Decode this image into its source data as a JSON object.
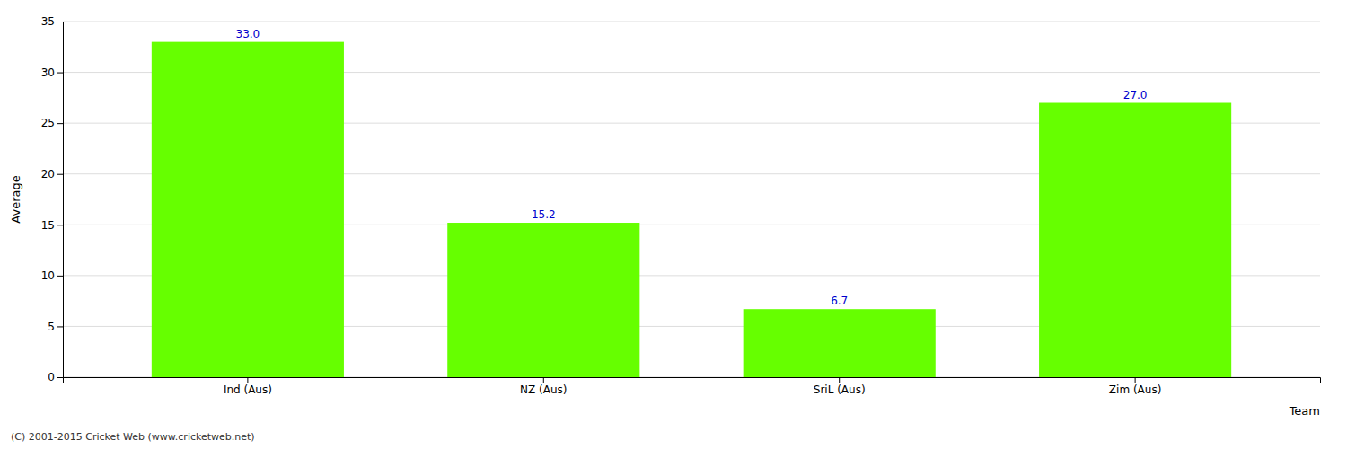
{
  "chart_data": {
    "type": "bar",
    "categories": [
      "Ind (Aus)",
      "NZ (Aus)",
      "SriL (Aus)",
      "Zim (Aus)"
    ],
    "values": [
      33.0,
      15.2,
      6.7,
      27.0
    ],
    "value_labels": [
      "33.0",
      "15.2",
      "6.7",
      "27.0"
    ],
    "color": "#66ff00",
    "xlabel": "Team",
    "ylabel": "Average",
    "ylim": [
      0,
      35
    ],
    "yticks": [
      0,
      5,
      10,
      15,
      20,
      25,
      30,
      35
    ],
    "grid": true,
    "data_labels": true,
    "annotations": [
      "(C) 2001-2015 Cricket Web (www.cricketweb.net)"
    ]
  }
}
